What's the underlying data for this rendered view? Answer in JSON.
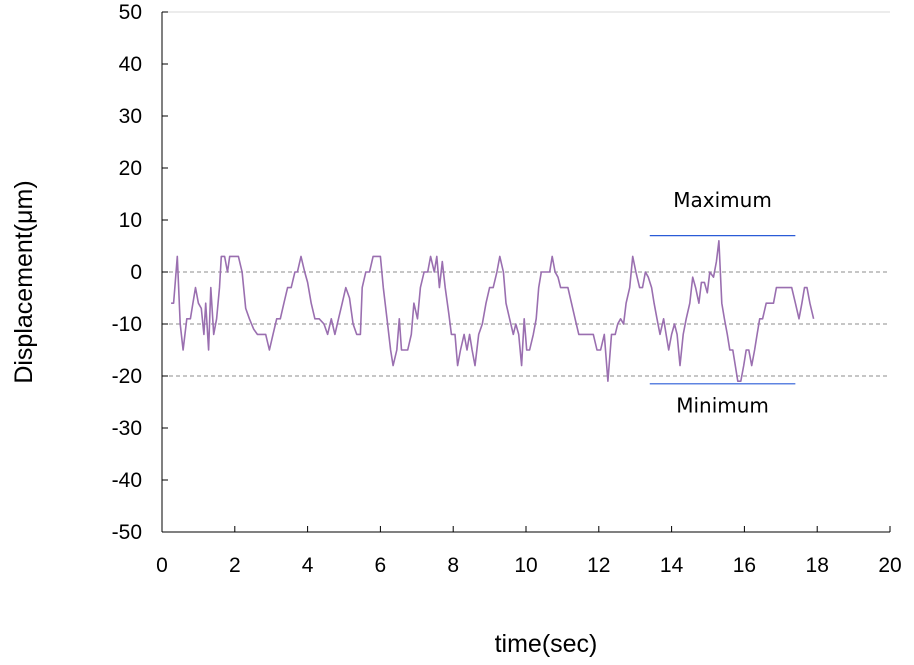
{
  "chart_data": {
    "type": "line",
    "title": "",
    "xlabel": "time(sec)",
    "ylabel": "Displacement(μm)",
    "xlim": [
      0,
      20
    ],
    "ylim": [
      -50,
      50
    ],
    "xticks": [
      0,
      2,
      4,
      6,
      8,
      10,
      12,
      14,
      16,
      18,
      20
    ],
    "yticks": [
      50,
      40,
      30,
      20,
      10,
      0,
      -10,
      -20,
      -30,
      -40,
      -50
    ],
    "reference_lines": [
      0,
      -10,
      -20
    ],
    "grid": false,
    "series": [
      {
        "color": "#9a6fb0",
        "points": [
          [
            0.25,
            -6
          ],
          [
            0.32,
            -6
          ],
          [
            0.42,
            3
          ],
          [
            0.5,
            -10
          ],
          [
            0.58,
            -15
          ],
          [
            0.68,
            -9
          ],
          [
            0.78,
            -9
          ],
          [
            0.85,
            -6
          ],
          [
            0.92,
            -3
          ],
          [
            1.0,
            -6
          ],
          [
            1.08,
            -7
          ],
          [
            1.15,
            -12
          ],
          [
            1.2,
            -6
          ],
          [
            1.28,
            -15
          ],
          [
            1.34,
            -3
          ],
          [
            1.42,
            -12
          ],
          [
            1.5,
            -9
          ],
          [
            1.58,
            -3
          ],
          [
            1.63,
            3
          ],
          [
            1.72,
            3
          ],
          [
            1.8,
            0
          ],
          [
            1.86,
            3
          ],
          [
            2.0,
            3
          ],
          [
            2.1,
            3
          ],
          [
            2.2,
            0
          ],
          [
            2.3,
            -7
          ],
          [
            2.4,
            -9
          ],
          [
            2.52,
            -11
          ],
          [
            2.62,
            -12
          ],
          [
            2.75,
            -12
          ],
          [
            2.85,
            -12
          ],
          [
            2.95,
            -15
          ],
          [
            3.05,
            -12
          ],
          [
            3.15,
            -9
          ],
          [
            3.25,
            -9
          ],
          [
            3.35,
            -6
          ],
          [
            3.45,
            -3
          ],
          [
            3.55,
            -3
          ],
          [
            3.65,
            0
          ],
          [
            3.72,
            0
          ],
          [
            3.82,
            3
          ],
          [
            3.92,
            0
          ],
          [
            4.0,
            -2
          ],
          [
            4.1,
            -6
          ],
          [
            4.2,
            -9
          ],
          [
            4.32,
            -9
          ],
          [
            4.45,
            -10
          ],
          [
            4.55,
            -12
          ],
          [
            4.65,
            -9
          ],
          [
            4.75,
            -12
          ],
          [
            4.85,
            -9
          ],
          [
            4.95,
            -6
          ],
          [
            5.05,
            -3
          ],
          [
            5.15,
            -5
          ],
          [
            5.25,
            -10
          ],
          [
            5.35,
            -12
          ],
          [
            5.45,
            -12
          ],
          [
            5.5,
            -3
          ],
          [
            5.6,
            0
          ],
          [
            5.7,
            0
          ],
          [
            5.8,
            3
          ],
          [
            5.9,
            3
          ],
          [
            6.0,
            3
          ],
          [
            6.08,
            -3
          ],
          [
            6.18,
            -9
          ],
          [
            6.28,
            -15
          ],
          [
            6.35,
            -18
          ],
          [
            6.45,
            -15
          ],
          [
            6.52,
            -9
          ],
          [
            6.58,
            -15
          ],
          [
            6.65,
            -15
          ],
          [
            6.75,
            -15
          ],
          [
            6.85,
            -12
          ],
          [
            6.92,
            -6
          ],
          [
            7.02,
            -9
          ],
          [
            7.1,
            -3
          ],
          [
            7.2,
            0
          ],
          [
            7.3,
            0
          ],
          [
            7.38,
            3
          ],
          [
            7.48,
            0
          ],
          [
            7.55,
            3
          ],
          [
            7.62,
            -3
          ],
          [
            7.7,
            2
          ],
          [
            7.78,
            -3
          ],
          [
            7.88,
            -8
          ],
          [
            7.95,
            -12
          ],
          [
            8.05,
            -12
          ],
          [
            8.12,
            -18
          ],
          [
            8.2,
            -15
          ],
          [
            8.3,
            -12
          ],
          [
            8.38,
            -15
          ],
          [
            8.45,
            -12
          ],
          [
            8.52,
            -15
          ],
          [
            8.6,
            -18
          ],
          [
            8.7,
            -12
          ],
          [
            8.8,
            -10
          ],
          [
            8.9,
            -6
          ],
          [
            9.0,
            -3
          ],
          [
            9.1,
            -3
          ],
          [
            9.2,
            0
          ],
          [
            9.28,
            3
          ],
          [
            9.38,
            0
          ],
          [
            9.45,
            -6
          ],
          [
            9.55,
            -9
          ],
          [
            9.65,
            -12
          ],
          [
            9.72,
            -10
          ],
          [
            9.8,
            -12
          ],
          [
            9.88,
            -18
          ],
          [
            9.95,
            -9
          ],
          [
            10.02,
            -15
          ],
          [
            10.1,
            -15
          ],
          [
            10.2,
            -12
          ],
          [
            10.28,
            -9
          ],
          [
            10.35,
            -3
          ],
          [
            10.42,
            0
          ],
          [
            10.5,
            0
          ],
          [
            10.58,
            0
          ],
          [
            10.65,
            0
          ],
          [
            10.72,
            3
          ],
          [
            10.8,
            0
          ],
          [
            10.88,
            -1
          ],
          [
            10.95,
            -3
          ],
          [
            11.05,
            -3
          ],
          [
            11.15,
            -3
          ],
          [
            11.25,
            -6
          ],
          [
            11.35,
            -9
          ],
          [
            11.45,
            -12
          ],
          [
            11.55,
            -12
          ],
          [
            11.65,
            -12
          ],
          [
            11.75,
            -12
          ],
          [
            11.85,
            -12
          ],
          [
            11.95,
            -15
          ],
          [
            12.05,
            -15
          ],
          [
            12.15,
            -12
          ],
          [
            12.25,
            -21
          ],
          [
            12.35,
            -12
          ],
          [
            12.45,
            -12
          ],
          [
            12.52,
            -10
          ],
          [
            12.6,
            -9
          ],
          [
            12.68,
            -10
          ],
          [
            12.75,
            -6
          ],
          [
            12.85,
            -3
          ],
          [
            12.93,
            3
          ],
          [
            13.02,
            0
          ],
          [
            13.12,
            -3
          ],
          [
            13.2,
            -3
          ],
          [
            13.28,
            0
          ],
          [
            13.36,
            -1
          ],
          [
            13.45,
            -3
          ],
          [
            13.52,
            -6
          ],
          [
            13.6,
            -9
          ],
          [
            13.68,
            -12
          ],
          [
            13.78,
            -9
          ],
          [
            13.85,
            -12
          ],
          [
            13.92,
            -15
          ],
          [
            14.0,
            -12
          ],
          [
            14.08,
            -10
          ],
          [
            14.15,
            -12
          ],
          [
            14.23,
            -18
          ],
          [
            14.32,
            -12
          ],
          [
            14.4,
            -9
          ],
          [
            14.5,
            -6
          ],
          [
            14.58,
            -1
          ],
          [
            14.66,
            -3
          ],
          [
            14.75,
            -6
          ],
          [
            14.82,
            -2
          ],
          [
            14.9,
            -2
          ],
          [
            14.98,
            -4
          ],
          [
            15.05,
            0
          ],
          [
            15.15,
            -1
          ],
          [
            15.23,
            2
          ],
          [
            15.3,
            6
          ],
          [
            15.38,
            -6
          ],
          [
            15.45,
            -9
          ],
          [
            15.53,
            -12
          ],
          [
            15.6,
            -15
          ],
          [
            15.68,
            -15
          ],
          [
            15.75,
            -18
          ],
          [
            15.82,
            -21
          ],
          [
            15.9,
            -21
          ],
          [
            15.98,
            -18
          ],
          [
            16.05,
            -15
          ],
          [
            16.12,
            -15
          ],
          [
            16.2,
            -18
          ],
          [
            16.28,
            -15
          ],
          [
            16.35,
            -12
          ],
          [
            16.42,
            -9
          ],
          [
            16.5,
            -9
          ],
          [
            16.6,
            -6
          ],
          [
            16.7,
            -6
          ],
          [
            16.8,
            -6
          ],
          [
            16.88,
            -3
          ],
          [
            17.0,
            -3
          ],
          [
            17.15,
            -3
          ],
          [
            17.3,
            -3
          ],
          [
            17.4,
            -6
          ],
          [
            17.5,
            -9
          ],
          [
            17.58,
            -6
          ],
          [
            17.65,
            -3
          ],
          [
            17.72,
            -3
          ],
          [
            17.8,
            -6
          ],
          [
            17.9,
            -9
          ]
        ]
      }
    ],
    "annotations": [
      {
        "text": "Maximum",
        "line_x": [
          13.4,
          17.4
        ],
        "line_y": 7,
        "label_x": 15.4,
        "label_y": 12.5
      },
      {
        "text": "Minimum",
        "line_x": [
          13.4,
          17.4
        ],
        "line_y": -21.5,
        "label_x": 15.4,
        "label_y": -27
      }
    ],
    "annotation_line_color": "#2a5bd7",
    "reference_line_color": "#8c8c8c"
  }
}
